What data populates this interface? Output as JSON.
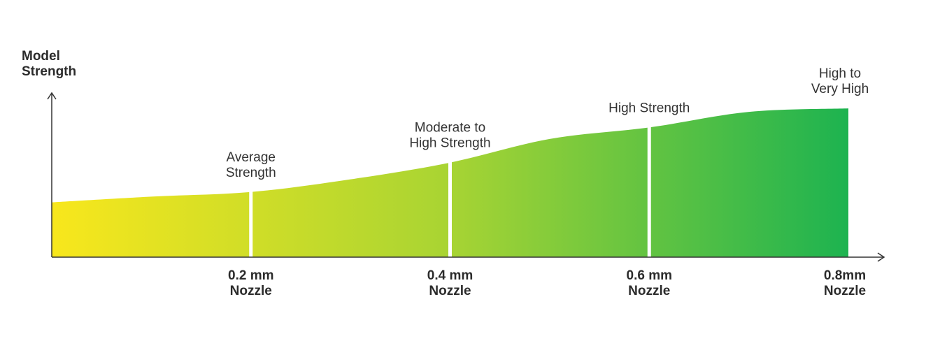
{
  "chart_data": {
    "type": "area",
    "ylabel": [
      "Model",
      "Strength"
    ],
    "x_ticks": [
      {
        "x": 0.2,
        "label": [
          "0.2 mm",
          "Nozzle"
        ]
      },
      {
        "x": 0.4,
        "label": [
          "0.4 mm",
          "Nozzle"
        ]
      },
      {
        "x": 0.6,
        "label": [
          "0.6 mm",
          "Nozzle"
        ]
      },
      {
        "x": 0.8,
        "label": [
          "0.8mm",
          "Nozzle"
        ]
      }
    ],
    "xlim": [
      0,
      0.8
    ],
    "ylim": [
      0,
      3.5
    ],
    "curve": {
      "x": [
        0,
        0.1,
        0.2,
        0.3,
        0.4,
        0.5,
        0.6,
        0.7,
        0.8
      ],
      "y": [
        0.95,
        1.05,
        1.13,
        1.35,
        1.64,
        2.05,
        2.25,
        2.52,
        2.58
      ]
    },
    "categories": [
      {
        "x": 0.2,
        "label": [
          "Average",
          "Strength"
        ]
      },
      {
        "x": 0.4,
        "label": [
          "Moderate to",
          "High Strength"
        ]
      },
      {
        "x": 0.6,
        "label": [
          "High Strength"
        ]
      },
      {
        "x": 0.8,
        "label": [
          "High to",
          "Very High"
        ]
      }
    ],
    "colors": {
      "gradient_start": "#f8e71c",
      "gradient_mid": "#a8d433",
      "gradient_end": "#1db350",
      "axis": "#333333",
      "divider": "#ffffff"
    },
    "grid": false
  }
}
